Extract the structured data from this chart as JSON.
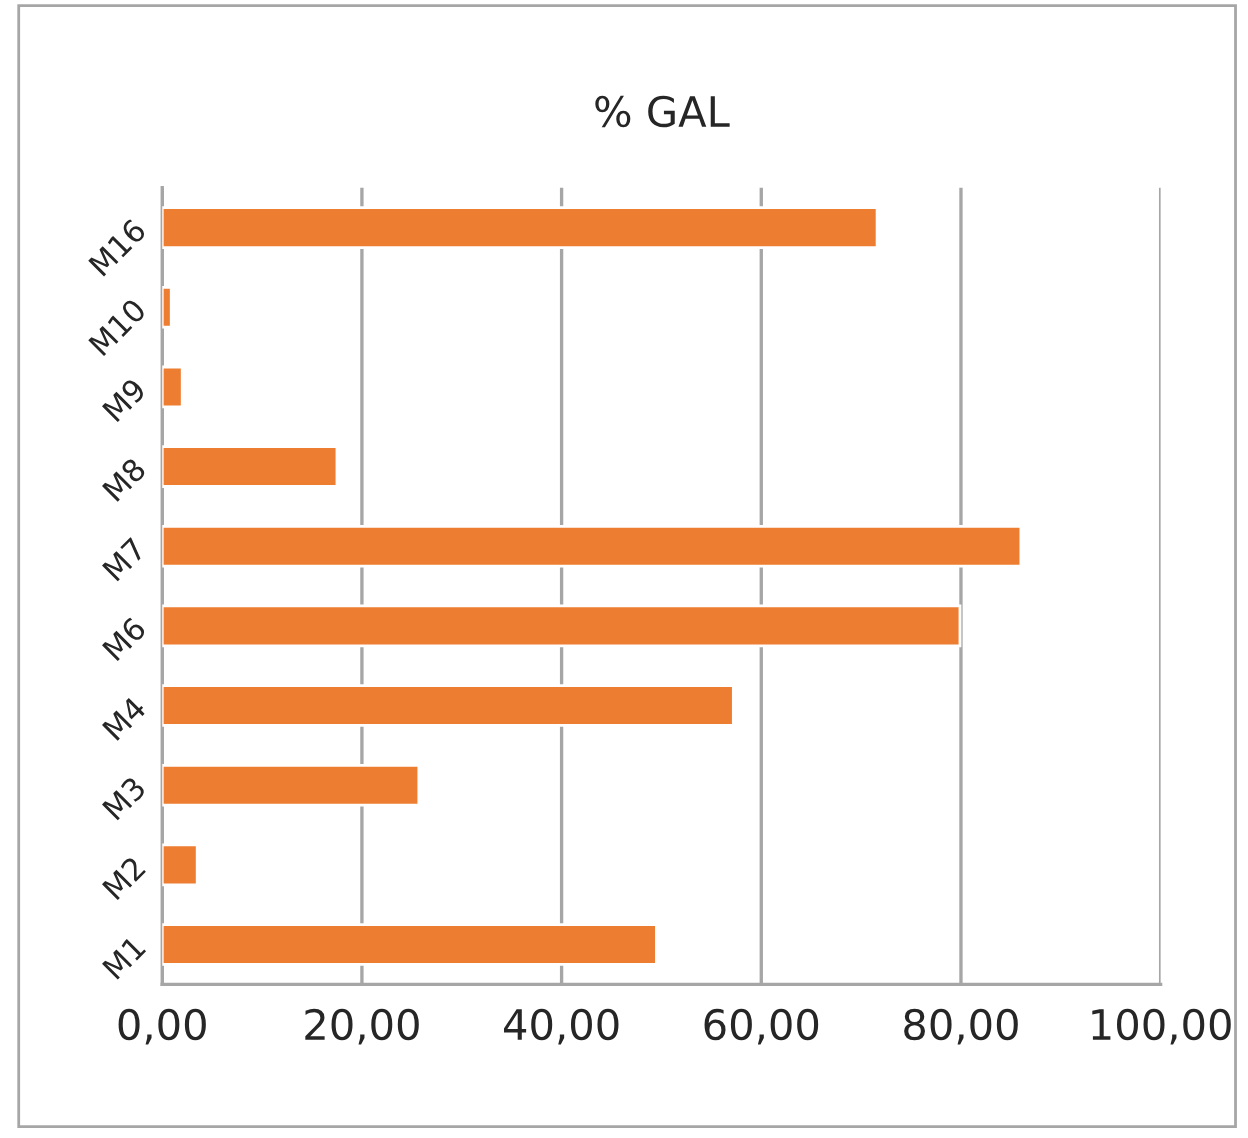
{
  "chart_data": {
    "type": "bar",
    "orientation": "horizontal",
    "title": "% GAL",
    "categories": [
      "M16",
      "M10",
      "M9",
      "M8",
      "M7",
      "M6",
      "M4",
      "M3",
      "M2",
      "M1"
    ],
    "values": [
      71.6,
      0.9,
      2.0,
      17.5,
      86.0,
      79.9,
      57.2,
      25.7,
      3.5,
      49.5
    ],
    "color": "#ed7d31",
    "xlim": [
      0,
      100
    ],
    "xticks": [
      {
        "value": 0,
        "label": "0,00"
      },
      {
        "value": 20,
        "label": "20,00"
      },
      {
        "value": 40,
        "label": "40,00"
      },
      {
        "value": 60,
        "label": "60,00"
      },
      {
        "value": 80,
        "label": "80,00"
      },
      {
        "value": 100,
        "label": "100,00"
      }
    ],
    "grid": "x",
    "legend": false
  }
}
